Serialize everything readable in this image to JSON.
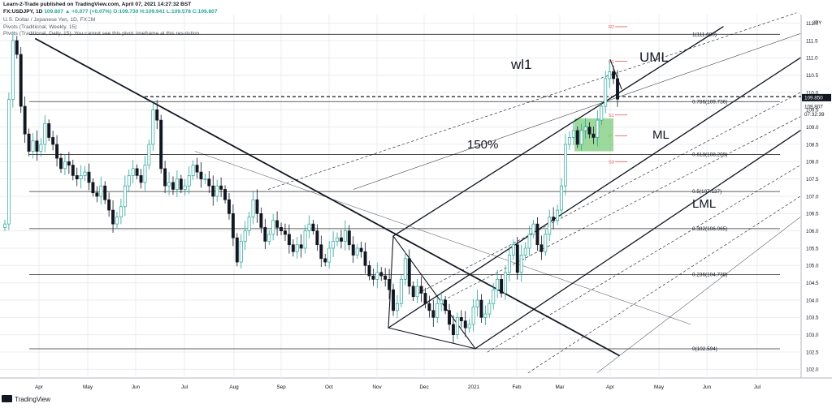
{
  "header": {
    "publisher": "Learn-2-Trade published on TradingView.com, April 07, 2021 14:27:32 BST",
    "symbol": "FX:USDJPY, 1D",
    "change": "109.807 ▲ +0.077 (+0.07%)",
    "ohlc": "O:109.730 H:109.941 L:109.578 C:109.807",
    "series_title": "U.S. Dollar / Japanese Yen, 1D, FXCM",
    "pivot_weekly": "Pivots (Traditional, Weekly, 15)",
    "pivot_daily": "Pivots (Traditional, Daily, 15): You cannot see this pivot timeframe at this resolution."
  },
  "footer": {
    "brand": "TradingView"
  },
  "colors": {
    "up": "#26a69a",
    "down": "#131722",
    "grid": "#e9ecef",
    "pivot": "#e05a5a",
    "box": "#7ccb7c",
    "axis_tag": "#131722"
  },
  "chart_data": {
    "type": "candlestick",
    "symbol": "USDJPY",
    "y_range": [
      101.75,
      112.25
    ],
    "y_ticks": [
      102,
      102.5,
      103,
      103.5,
      104,
      104.5,
      105,
      105.5,
      106,
      106.5,
      107,
      107.5,
      108,
      108.5,
      109,
      109.5,
      110,
      110.5,
      111,
      111.5,
      112
    ],
    "currency_label": "JPY",
    "x_ticks": [
      "Apr",
      "May",
      "Jun",
      "Jul",
      "Aug",
      "Sep",
      "Oct",
      "Nov",
      "Dec",
      "2021",
      "Feb",
      "Mar",
      "Apr",
      "May",
      "Jun",
      "Jul"
    ],
    "price_tags": [
      {
        "label": "109.850",
        "price": 109.85
      },
      {
        "label": "109.807",
        "price": 109.6
      },
      {
        "label": "07:32:39",
        "price": 109.38
      }
    ],
    "fib_levels": [
      {
        "label": "1(111.680)",
        "price": 111.68
      },
      {
        "label": "0.786(109.736)",
        "price": 109.736
      },
      {
        "label": "0.618(108.209)",
        "price": 108.209
      },
      {
        "label": "0.5(107.137)",
        "price": 107.137
      },
      {
        "label": "0.382(106.065)",
        "price": 106.065
      },
      {
        "label": "0.236(104.738)",
        "price": 104.738
      },
      {
        "label": "0(102.594)",
        "price": 102.594
      }
    ],
    "pivot_levels": [
      {
        "label": "R2",
        "price": 111.9
      },
      {
        "label": "R1",
        "price": 110.9
      },
      {
        "label": "S1",
        "price": 109.35
      },
      {
        "label": "P",
        "price": 108.75
      },
      {
        "label": "S3",
        "price": 108.0
      }
    ],
    "annotations": [
      "wl1",
      "UML",
      "150%",
      "ML",
      "LML"
    ],
    "closes": [
      106.2,
      109.8,
      111.5,
      111.1,
      109.6,
      108.8,
      108.3,
      108.6,
      108.3,
      108.5,
      109.1,
      108.7,
      108.5,
      108.1,
      107.8,
      108.0,
      107.9,
      107.6,
      107.5,
      107.6,
      107.7,
      107.4,
      107.1,
      107.0,
      107.3,
      106.9,
      106.6,
      106.2,
      106.4,
      106.7,
      107.3,
      107.6,
      107.8,
      107.6,
      107.4,
      107.9,
      108.5,
      109.5,
      109.2,
      107.8,
      107.3,
      107.4,
      107.2,
      107.5,
      107.2,
      107.3,
      107.6,
      107.9,
      107.7,
      107.5,
      107.5,
      107.3,
      107.0,
      107.3,
      107.2,
      106.9,
      106.5,
      105.8,
      105.1,
      105.7,
      106.0,
      106.4,
      106.9,
      106.5,
      106.1,
      105.7,
      105.9,
      106.3,
      106.1,
      106.0,
      105.9,
      105.6,
      105.4,
      105.6,
      105.5,
      106.0,
      106.2,
      106.0,
      105.6,
      105.2,
      105.1,
      105.5,
      105.7,
      105.8,
      105.7,
      106.0,
      105.6,
      105.3,
      105.5,
      105.4,
      105.0,
      104.7,
      104.6,
      104.8,
      104.7,
      104.6,
      104.3,
      103.7,
      103.9,
      104.6,
      105.2,
      104.4,
      104.1,
      104.4,
      104.2,
      103.9,
      103.7,
      103.5,
      103.9,
      104.0,
      103.7,
      103.3,
      103.0,
      103.5,
      103.4,
      103.2,
      103.3,
      103.8,
      104.0,
      103.5,
      103.6,
      103.9,
      104.3,
      104.6,
      104.2,
      104.8,
      105.3,
      105.6,
      104.8,
      105.3,
      105.5,
      105.9,
      106.2,
      105.6,
      105.4,
      105.9,
      106.4,
      106.3,
      106.6,
      107.3,
      108.5,
      108.7,
      108.9,
      108.5,
      108.9,
      109.0,
      108.8,
      108.7,
      109.2,
      109.6,
      110.4,
      110.6,
      110.4,
      109.807
    ]
  }
}
